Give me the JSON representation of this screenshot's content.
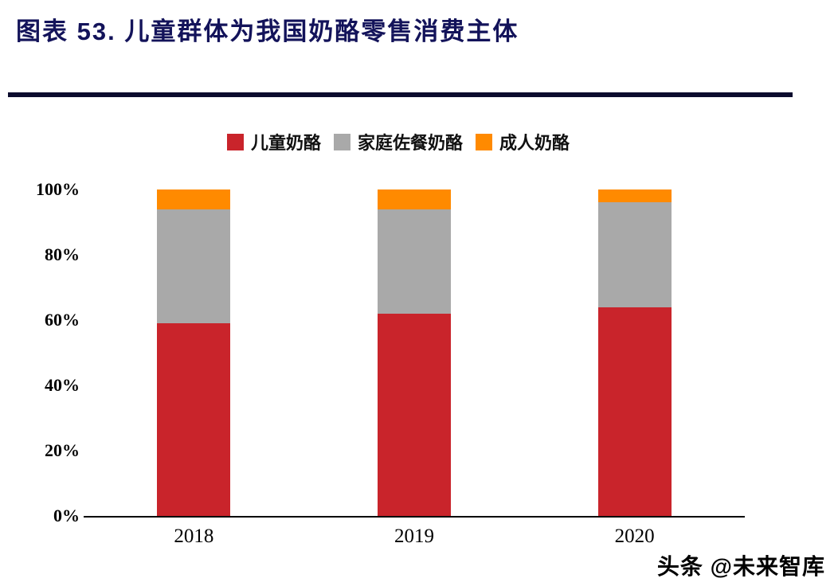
{
  "header": {
    "title": "图表 53. 儿童群体为我国奶酪零售消费主体"
  },
  "chart_data": {
    "type": "bar",
    "stacked": true,
    "title": "图表 53. 儿童群体为我国奶酪零售消费主体",
    "categories": [
      "2018",
      "2019",
      "2020"
    ],
    "series": [
      {
        "name": "儿童奶酪",
        "color": "#c9242b",
        "values": [
          59,
          62,
          64
        ]
      },
      {
        "name": "家庭佐餐奶酪",
        "color": "#a9a9a9",
        "values": [
          35,
          32,
          32
        ]
      },
      {
        "name": "成人奶酪",
        "color": "#ff8a00",
        "values": [
          6,
          6,
          4
        ]
      }
    ],
    "xlabel": "",
    "ylabel": "",
    "ylim": [
      0,
      100
    ],
    "yticks": [
      "0%",
      "20%",
      "40%",
      "60%",
      "80%",
      "100%"
    ],
    "legend_position": "top",
    "grid": false
  },
  "watermark": {
    "text": "头条 @未来智库"
  }
}
